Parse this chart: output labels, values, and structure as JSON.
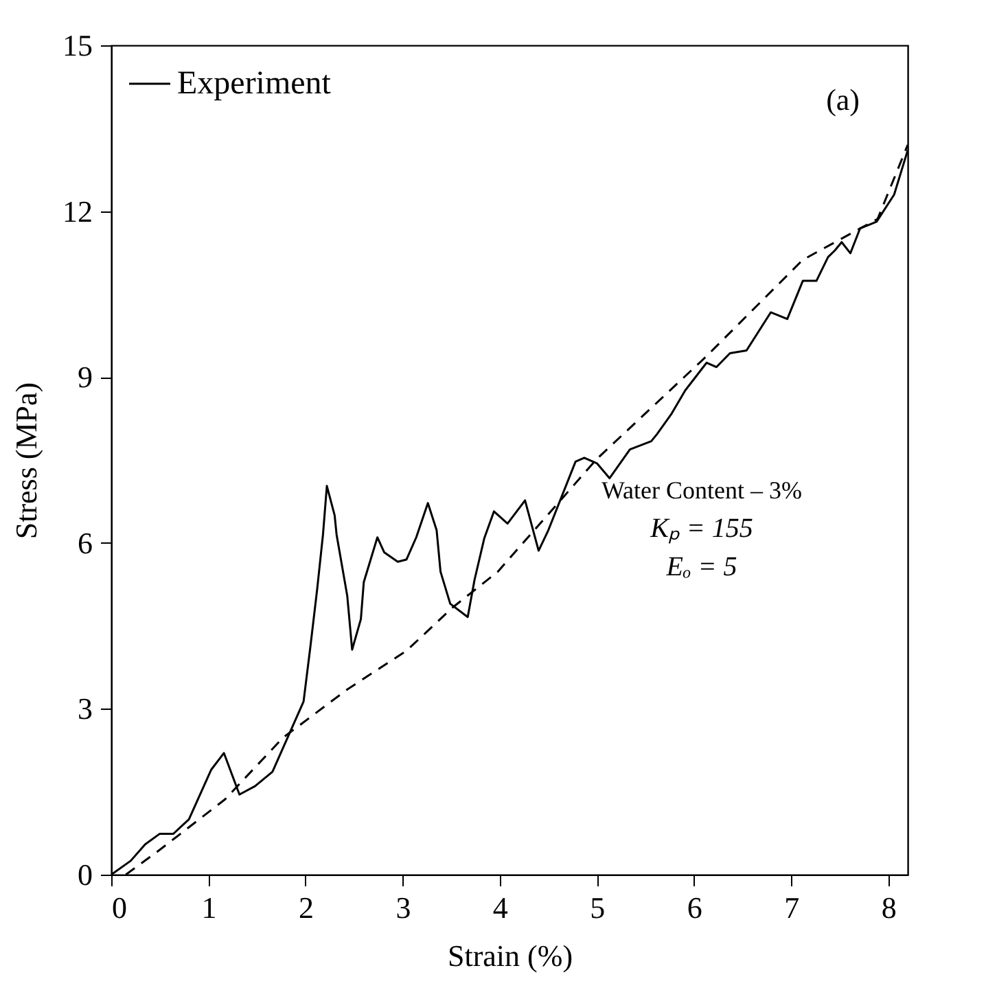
{
  "chart_data": {
    "type": "line",
    "xlabel": "Strain (%)",
    "ylabel": "Stress (MPa)",
    "xlim": [
      0,
      8.2
    ],
    "ylim": [
      0,
      15
    ],
    "xticks": [
      0,
      1,
      2,
      3,
      4,
      5,
      6,
      7,
      8
    ],
    "yticks": [
      0,
      3,
      6,
      9,
      12,
      15
    ],
    "grid": false,
    "legend": "top left",
    "annotations": [
      "(a)",
      "Water Content – 3%",
      "Kₚ = 155",
      "Eₒ = 5"
    ],
    "series": [
      {
        "name": "Experiment",
        "color": "#000000",
        "line_style": "solid",
        "x": [
          0,
          0.2,
          0.35,
          0.5,
          0.64,
          0.8,
          1.03,
          1.16,
          1.32,
          1.48,
          1.66,
          1.98,
          2.05,
          2.12,
          2.18,
          2.22,
          2.3,
          2.32,
          2.43,
          2.48,
          2.57,
          2.6,
          2.74,
          2.81,
          2.95,
          3.04,
          3.14,
          3.26,
          3.35,
          3.39,
          3.49,
          3.67,
          3.74,
          3.84,
          3.94,
          4.08,
          4.26,
          4.4,
          4.5,
          4.78,
          4.87,
          5.0,
          5.13,
          5.34,
          5.56,
          5.62,
          5.77,
          5.91,
          6.13,
          6.23,
          6.37,
          6.54,
          6.79,
          6.96,
          7.12,
          7.26,
          7.38,
          7.45,
          7.52,
          7.61,
          7.71,
          7.88,
          8.06,
          8.2
        ],
        "values": [
          0,
          0.25,
          0.55,
          0.74,
          0.74,
          1.0,
          1.9,
          2.2,
          1.45,
          1.6,
          1.86,
          3.13,
          4.12,
          5.16,
          6.15,
          7.03,
          6.5,
          6.15,
          5.04,
          4.07,
          4.62,
          5.29,
          6.1,
          5.83,
          5.66,
          5.7,
          6.1,
          6.72,
          6.23,
          5.48,
          4.9,
          4.66,
          5.33,
          6.08,
          6.57,
          6.35,
          6.77,
          5.86,
          6.23,
          7.47,
          7.54,
          7.44,
          7.17,
          7.69,
          7.84,
          7.97,
          8.34,
          8.76,
          9.26,
          9.18,
          9.43,
          9.48,
          10.17,
          10.05,
          10.74,
          10.74,
          11.17,
          11.29,
          11.44,
          11.24,
          11.69,
          11.81,
          12.3,
          13.1
        ]
      },
      {
        "color": "#000000",
        "line_style": "dashed",
        "x": [
          0.15,
          0.5,
          1.17,
          1.77,
          2.43,
          3.04,
          3.52,
          3.98,
          5.0,
          6.13,
          7.12,
          7.89,
          8.2
        ],
        "values": [
          0,
          0.45,
          1.36,
          2.48,
          3.35,
          4.05,
          4.84,
          5.48,
          7.52,
          9.38,
          11.12,
          11.86,
          13.2
        ]
      }
    ]
  }
}
